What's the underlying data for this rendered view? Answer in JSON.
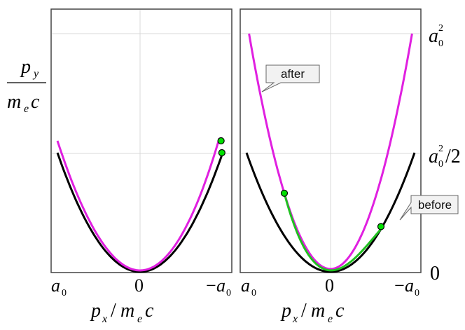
{
  "chart_data": [
    {
      "type": "line",
      "panel": "left",
      "xlim": [
        1,
        -1
      ],
      "ylim": [
        0,
        1
      ],
      "grid": true,
      "x_ticks": [
        "a0",
        "0",
        "−a0"
      ],
      "series": [
        {
          "color": "#000000",
          "x": [
            1,
            -1
          ],
          "y": [
            0.5,
            0.5
          ],
          "shape": "parabola 0.5*x^2"
        },
        {
          "color": "#e020e0",
          "x": [
            1,
            -0.96
          ],
          "y": [
            0.58,
            0.54
          ],
          "shape": "parabola, vertex shifted",
          "vertex_y": 0.006
        }
      ],
      "markers": [
        {
          "color": "#00e000",
          "x": -0.98,
          "y": 0.55
        },
        {
          "color": "#00e000",
          "x": -0.99,
          "y": 0.5
        }
      ]
    },
    {
      "type": "line",
      "panel": "right",
      "xlim": [
        1,
        -1
      ],
      "ylim": [
        0,
        1
      ],
      "grid": true,
      "x_ticks": [
        "a0",
        "0",
        "−a0"
      ],
      "y_ticks": [
        "a0^2",
        "a0^2/2",
        "0"
      ],
      "series": [
        {
          "color": "#000000",
          "range": [
            1,
            -1
          ],
          "shape": "0.5*x^2"
        },
        {
          "color": "#e020e0",
          "range": [
            1,
            -1
          ],
          "shape": "x^2"
        },
        {
          "color": "#20c020",
          "range": [
            0.55,
            -0.6
          ],
          "shape": "between before and after"
        }
      ],
      "markers": [
        {
          "color": "#00e000",
          "x": 0.55,
          "y": 0.33
        },
        {
          "color": "#00e000",
          "x": -0.6,
          "y": 0.19
        }
      ],
      "annotations": [
        "after",
        "before"
      ]
    }
  ],
  "labels": {
    "py": "p",
    "py_sub": "y",
    "me": "m",
    "me_sub": "e",
    "c": "c",
    "px_left": "p",
    "px_sub": "x",
    "slash": "/",
    "xlabel_me": "m",
    "xlabel_me_sub": "e",
    "xlabel_c": "c",
    "a0": "a",
    "a0_sub": "0",
    "zero": "0",
    "minus": "−",
    "ytop": "a",
    "ytop_sub": "0",
    "ytop_sup": "2",
    "ymid": "a",
    "ymid_sub": "0",
    "ymid_sup": "2",
    "ymid_div": "/2",
    "ybottom": "0",
    "after": "after",
    "before": "before"
  }
}
